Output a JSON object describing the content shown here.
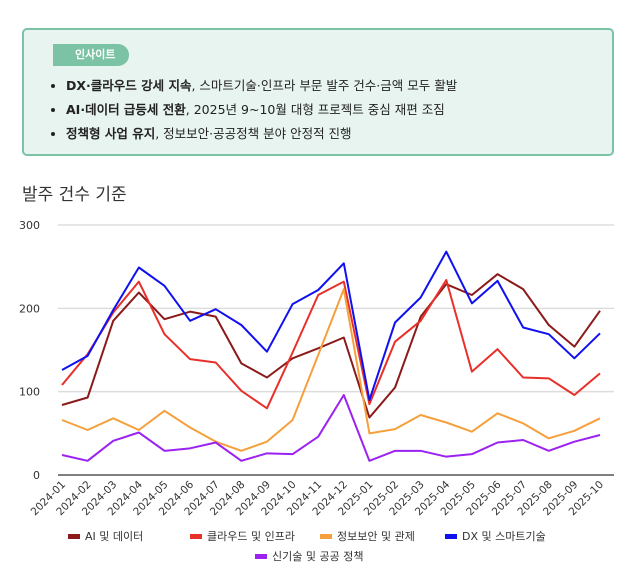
{
  "insight": {
    "badge": "인사이트",
    "icon": "lightbulb-icon",
    "items": [
      {
        "bold": "DX·클라우드 강세 지속",
        "rest": ", 스마트기술·인프라 부문 발주 건수·금액 모두 활발"
      },
      {
        "bold": "AI·데이터 급등세 전환",
        "rest": ", 2025년 9~10월 대형 프로젝트 중심 재편 조짐"
      },
      {
        "bold": "정책형 사업 유지",
        "rest": ", 정보보안·공공정책 분야 안정적 진행"
      }
    ]
  },
  "section_title": "발주 건수 기준",
  "chart_data": {
    "type": "line",
    "title": "",
    "xlabel": "",
    "ylabel": "",
    "ylim": [
      0,
      300
    ],
    "yticks": [
      0,
      100,
      200,
      300
    ],
    "grid": true,
    "legend_position": "bottom",
    "categories": [
      "2024-01",
      "2024-02",
      "2024-03",
      "2024-04",
      "2024-05",
      "2024-06",
      "2024-07",
      "2024-08",
      "2024-09",
      "2024-10",
      "2024-11",
      "2024-12",
      "2025-01",
      "2025-02",
      "2025-03",
      "2025-04",
      "2025-05",
      "2025-06",
      "2025-07",
      "2025-08",
      "2025-09",
      "2025-10"
    ],
    "series": [
      {
        "name": "AI 및 데이터",
        "color": "#8b1a1a",
        "values": [
          84,
          93,
          185,
          219,
          187,
          196,
          190,
          134,
          117,
          140,
          152,
          165,
          69,
          105,
          190,
          229,
          216,
          241,
          223,
          180,
          154,
          197
        ]
      },
      {
        "name": "클라우드 및 인프라",
        "color": "#e8302a",
        "values": [
          108,
          145,
          195,
          232,
          169,
          139,
          135,
          101,
          80,
          147,
          216,
          232,
          85,
          160,
          185,
          234,
          124,
          151,
          117,
          116,
          96,
          122
        ]
      },
      {
        "name": "정보보안 및 관제",
        "color": "#f5a03c",
        "values": [
          66,
          54,
          68,
          54,
          77,
          57,
          40,
          29,
          40,
          66,
          144,
          223,
          50,
          55,
          72,
          63,
          52,
          74,
          62,
          44,
          53,
          68
        ]
      },
      {
        "name": "DX 및 스마트기술",
        "color": "#1010f0",
        "values": [
          126,
          143,
          198,
          249,
          227,
          185,
          199,
          180,
          148,
          205,
          222,
          254,
          90,
          183,
          213,
          268,
          206,
          233,
          177,
          169,
          140,
          170
        ]
      },
      {
        "name": "신기술 및 공공 정책",
        "color": "#9b22f0",
        "values": [
          24,
          17,
          41,
          51,
          29,
          32,
          39,
          17,
          26,
          25,
          46,
          96,
          17,
          29,
          29,
          22,
          25,
          39,
          42,
          29,
          40,
          48
        ]
      }
    ]
  }
}
